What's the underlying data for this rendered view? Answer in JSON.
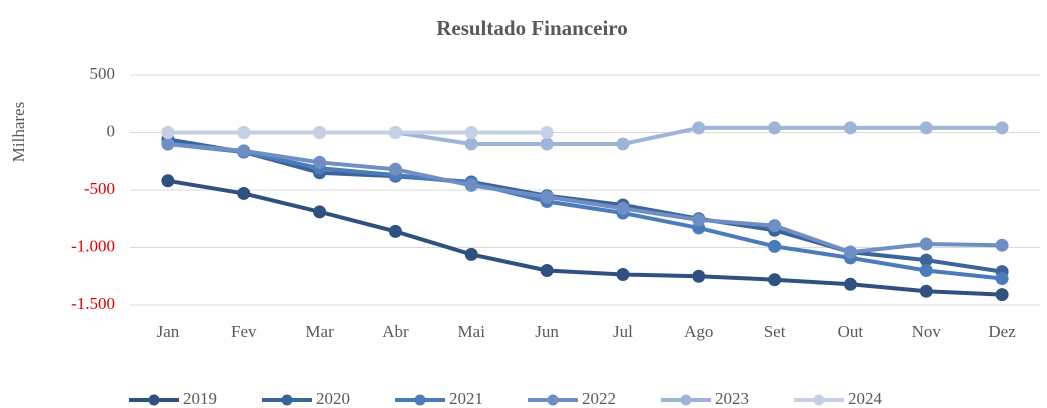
{
  "chart_data": {
    "type": "line",
    "title": "Resultado Financeiro",
    "y_label": "Milhares",
    "categories": [
      "Jan",
      "Fev",
      "Mar",
      "Abr",
      "Mai",
      "Jun",
      "Jul",
      "Ago",
      "Set",
      "Out",
      "Nov",
      "Dez"
    ],
    "series": [
      {
        "name": "2019",
        "color": "#30507f",
        "values": [
          -420,
          -530,
          -690,
          -860,
          -1060,
          -1200,
          -1235,
          -1250,
          -1280,
          -1320,
          -1380,
          -1410
        ]
      },
      {
        "name": "2020",
        "color": "#3b659a",
        "values": [
          -60,
          -170,
          -350,
          -380,
          -430,
          -550,
          -630,
          -750,
          -850,
          -1040,
          -1110,
          -1210
        ]
      },
      {
        "name": "2021",
        "color": "#4a7cbb",
        "values": [
          -100,
          -170,
          -310,
          -370,
          -440,
          -600,
          -700,
          -830,
          -990,
          -1090,
          -1200,
          -1270
        ]
      },
      {
        "name": "2022",
        "color": "#6f8fc4",
        "values": [
          -100,
          -160,
          -260,
          -320,
          -460,
          -560,
          -660,
          -760,
          -810,
          -1040,
          -970,
          -980
        ]
      },
      {
        "name": "2023",
        "color": "#a0b3d9",
        "values": [
          0,
          0,
          0,
          0,
          -100,
          -100,
          -100,
          40,
          40,
          40,
          40,
          40
        ]
      },
      {
        "name": "2024",
        "color": "#c6d0e4",
        "values": [
          0,
          0,
          0,
          0,
          0,
          0,
          null,
          null,
          null,
          null,
          null,
          null
        ]
      }
    ],
    "ylim": [
      -1500,
      500
    ],
    "yticks": [
      500,
      0,
      -500,
      {
        "value": -1000,
        "label": "-1.000"
      },
      {
        "value": -1500,
        "label": "-1.500"
      }
    ],
    "grid": true,
    "negative_tick_color": "#e00000",
    "legend": "bottom"
  }
}
